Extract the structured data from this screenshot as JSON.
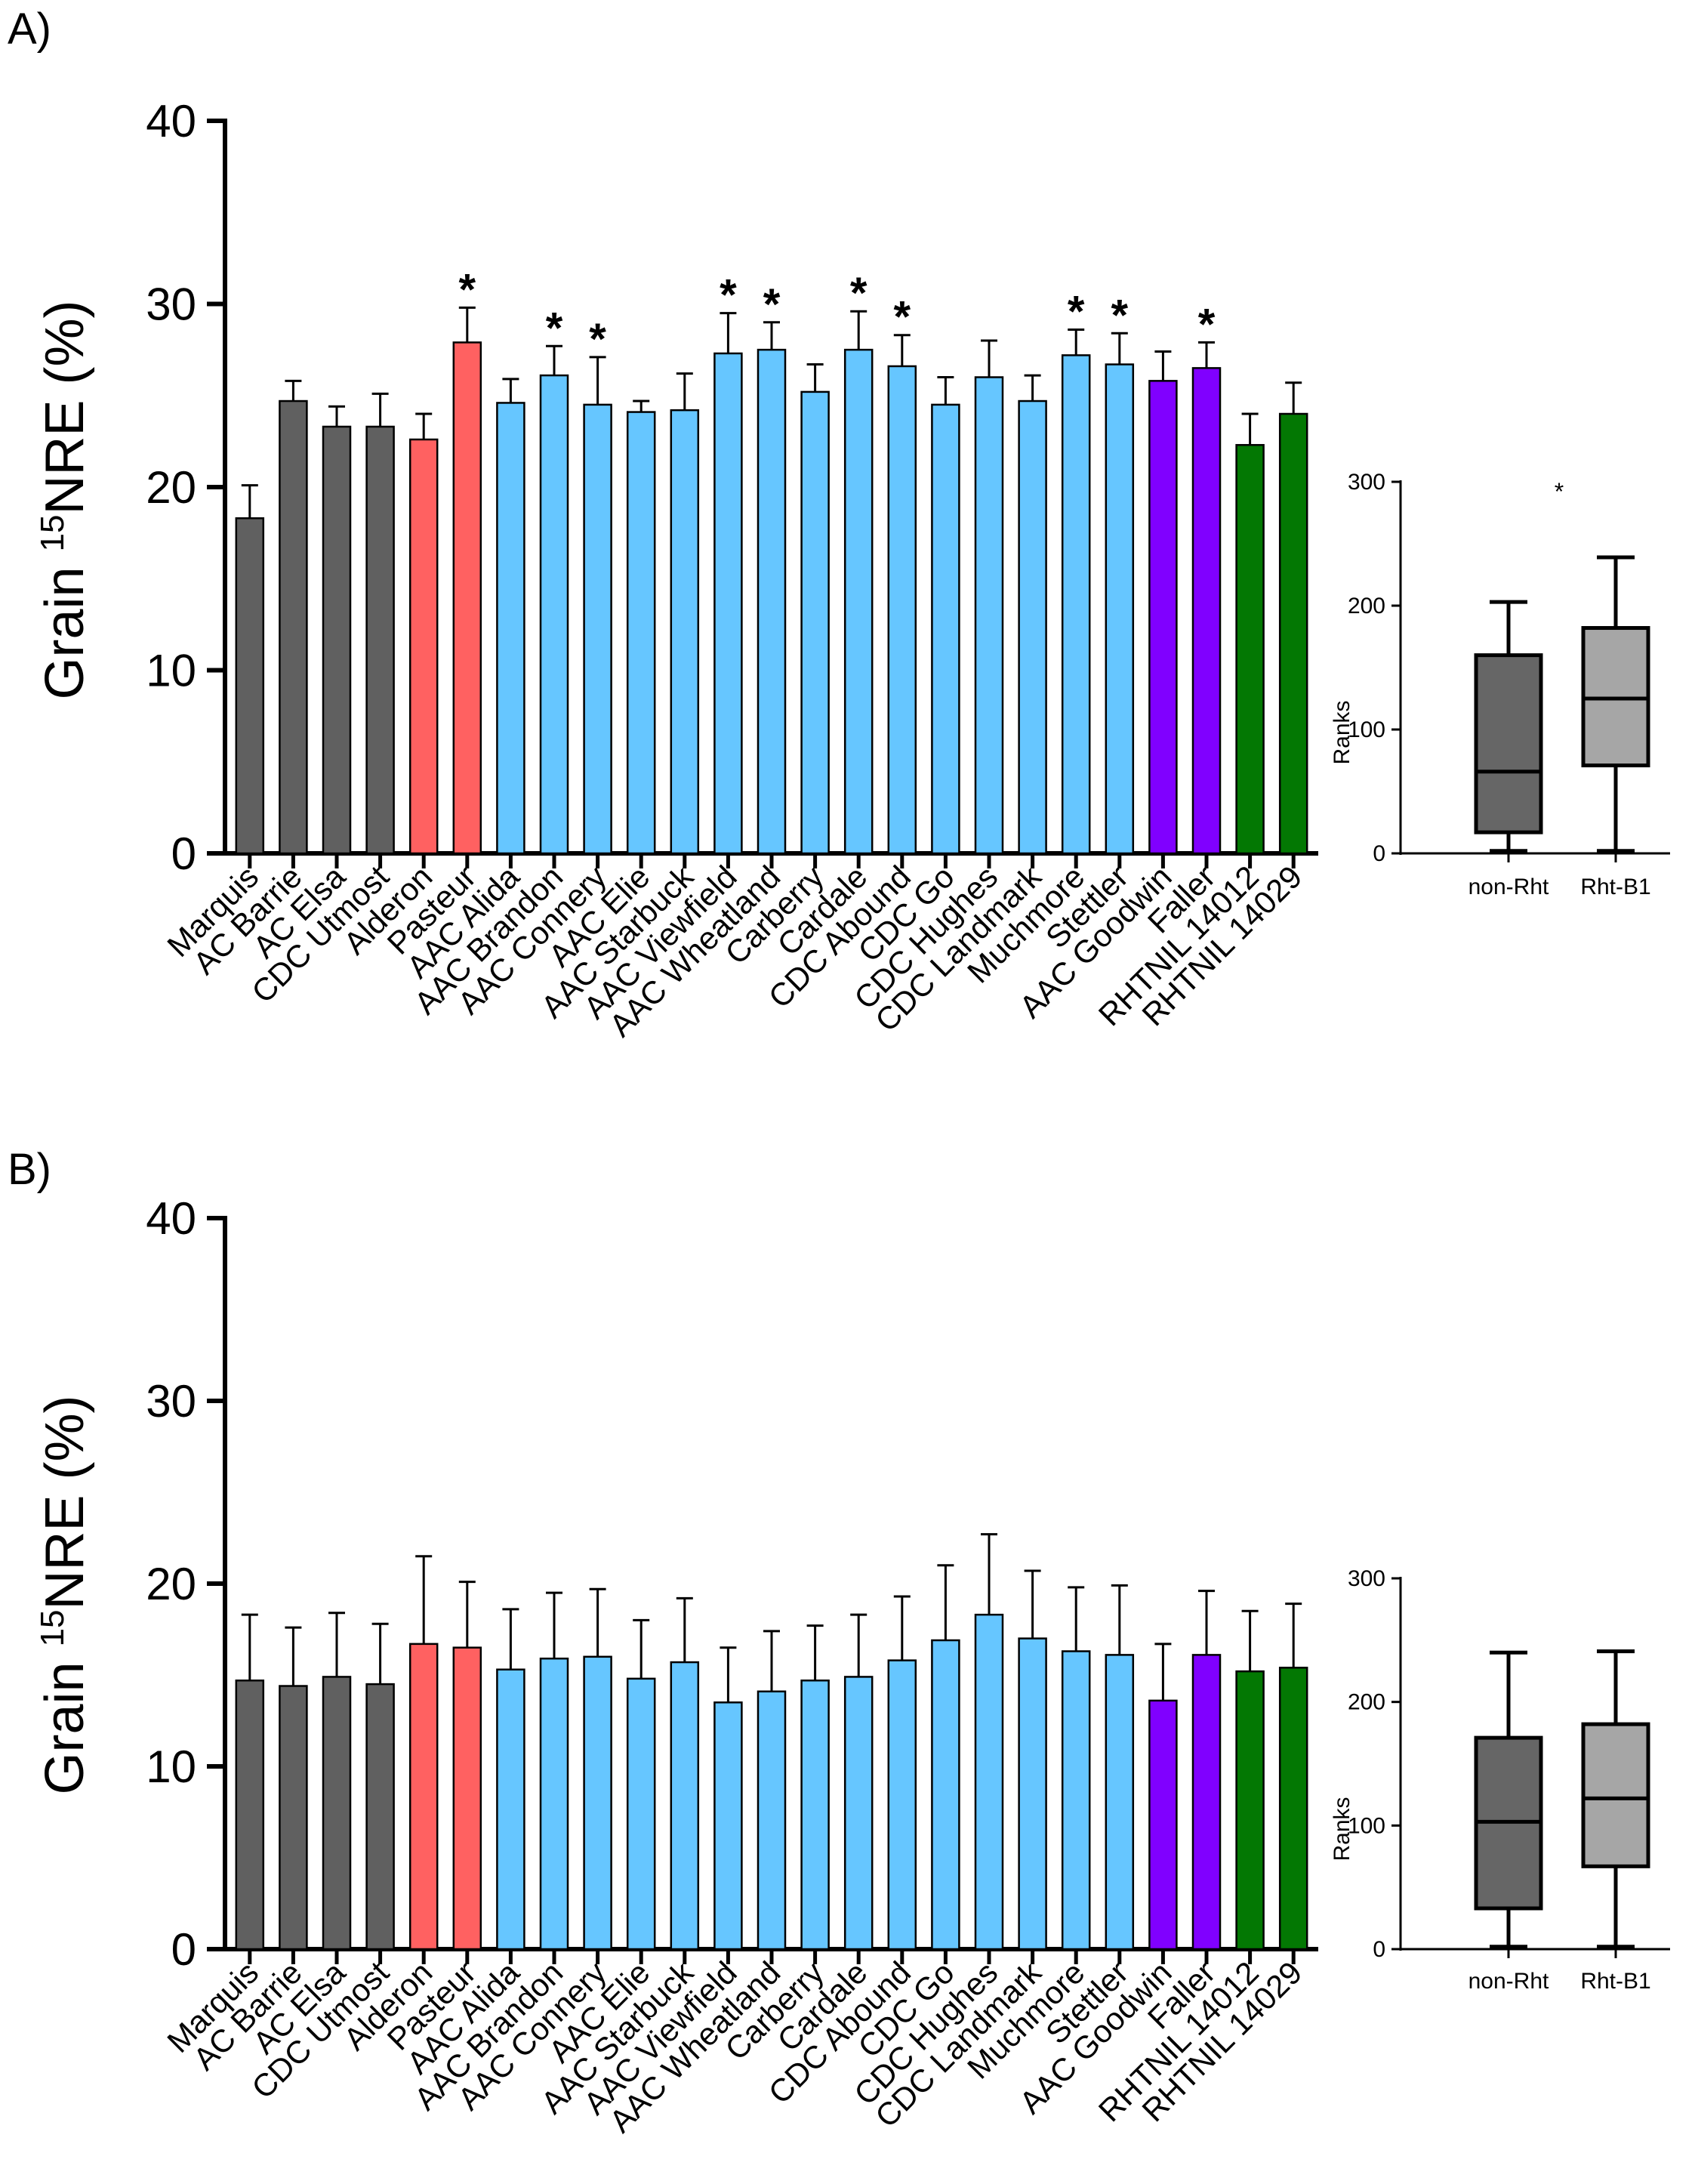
{
  "colors": {
    "gray": "#606060",
    "red": "#ff6161",
    "blue": "#66c6ff",
    "purple": "#8000ff",
    "green": "#037803",
    "box_dark": "#666666",
    "box_light": "#a6a6a6",
    "axis": "#000000"
  },
  "chart_data": [
    {
      "panel": "A)",
      "type": "bar",
      "ylabel_main": "Grain ",
      "ylabel_sup": "15",
      "ylabel_rest": "NRE (%)",
      "ylim": [
        0,
        40
      ],
      "yticks": [
        "0",
        "10",
        "20",
        "30",
        "40"
      ],
      "categories": [
        "Marquis",
        "AC Barrie",
        "AC Elsa",
        "CDC Utmost",
        "Alderon",
        "Pasteur",
        "AAC Alida",
        "AAC Brandon",
        "AAC Connery",
        "AAC Elie",
        "AAC Starbuck",
        "AAC Viewfield",
        "AAC Wheatland",
        "Carberry",
        "Cardale",
        "CDC Abound",
        "CDC Go",
        "CDC Hughes",
        "CDC Landmark",
        "Muchmore",
        "Stettler",
        "AAC Goodwin",
        "Faller",
        "RHTNIL 14012",
        "RHTNIL 14029"
      ],
      "groups": [
        "gray",
        "gray",
        "gray",
        "gray",
        "red",
        "red",
        "blue",
        "blue",
        "blue",
        "blue",
        "blue",
        "blue",
        "blue",
        "blue",
        "blue",
        "blue",
        "blue",
        "blue",
        "blue",
        "blue",
        "blue",
        "purple",
        "purple",
        "green",
        "green"
      ],
      "values": [
        18.3,
        24.7,
        23.3,
        23.3,
        22.6,
        27.9,
        24.6,
        26.1,
        24.5,
        24.1,
        24.2,
        27.3,
        27.5,
        25.2,
        27.5,
        26.6,
        24.5,
        26.0,
        24.7,
        27.2,
        26.7,
        25.8,
        26.5,
        22.3,
        24.0
      ],
      "errors": [
        1.8,
        1.1,
        1.1,
        1.8,
        1.4,
        1.9,
        1.3,
        1.6,
        2.6,
        0.6,
        2.0,
        2.2,
        1.5,
        1.5,
        2.1,
        1.7,
        1.5,
        2.0,
        1.4,
        1.4,
        1.7,
        1.6,
        1.4,
        1.7,
        1.7
      ],
      "significance": [
        "",
        "",
        "",
        "",
        "",
        "*",
        "",
        "*",
        "*",
        "",
        "",
        "*",
        "*",
        "",
        "*",
        "*",
        "",
        "",
        "",
        "*",
        "*",
        "",
        "*",
        "",
        ""
      ],
      "inset": {
        "type": "box",
        "ylabel": "Ranks",
        "ylim": [
          0,
          300
        ],
        "yticks": [
          "0",
          "100",
          "200",
          "300"
        ],
        "categories": [
          "non-Rht",
          "Rht-B1"
        ],
        "boxes": [
          {
            "min": 2,
            "q1": 17,
            "median": 66,
            "q3": 160,
            "max": 203
          },
          {
            "min": 2,
            "q1": 71,
            "median": 125,
            "q3": 182,
            "max": 239
          }
        ],
        "annotation": "*"
      }
    },
    {
      "panel": "B)",
      "type": "bar",
      "ylabel_main": "Grain ",
      "ylabel_sup": "15",
      "ylabel_rest": "NRE (%)",
      "ylim": [
        0,
        40
      ],
      "yticks": [
        "0",
        "10",
        "20",
        "30",
        "40"
      ],
      "categories": [
        "Marquis",
        "AC Barrie",
        "AC Elsa",
        "CDC Utmost",
        "Alderon",
        "Pasteur",
        "AAC Alida",
        "AAC Brandon",
        "AAC Connery",
        "AAC Elie",
        "AAC Starbuck",
        "AAC Viewfield",
        "AAC Wheatland",
        "Carberry",
        "Cardale",
        "CDC Abound",
        "CDC Go",
        "CDC Hughes",
        "CDC Landmark",
        "Muchmore",
        "Stettler",
        "AAC Goodwin",
        "Faller",
        "RHTNIL 14012",
        "RHTNIL 14029"
      ],
      "groups": [
        "gray",
        "gray",
        "gray",
        "gray",
        "red",
        "red",
        "blue",
        "blue",
        "blue",
        "blue",
        "blue",
        "blue",
        "blue",
        "blue",
        "blue",
        "blue",
        "blue",
        "blue",
        "blue",
        "blue",
        "blue",
        "purple",
        "purple",
        "green",
        "green"
      ],
      "values": [
        14.7,
        14.4,
        14.9,
        14.5,
        16.7,
        16.5,
        15.3,
        15.9,
        16.0,
        14.8,
        15.7,
        13.5,
        14.1,
        14.7,
        14.9,
        15.8,
        16.9,
        18.3,
        17.0,
        16.3,
        16.1,
        13.6,
        16.1,
        15.2,
        15.4
      ],
      "errors": [
        3.6,
        3.2,
        3.5,
        3.3,
        4.8,
        3.6,
        3.3,
        3.6,
        3.7,
        3.2,
        3.5,
        3.0,
        3.3,
        3.0,
        3.4,
        3.5,
        4.1,
        4.4,
        3.7,
        3.5,
        3.8,
        3.1,
        3.5,
        3.3,
        3.5
      ],
      "significance": [
        "",
        "",
        "",
        "",
        "",
        "",
        "",
        "",
        "",
        "",
        "",
        "",
        "",
        "",
        "",
        "",
        "",
        "",
        "",
        "",
        "",
        "",
        "",
        "",
        ""
      ],
      "inset": {
        "type": "box",
        "ylabel": "Ranks",
        "ylim": [
          0,
          300
        ],
        "yticks": [
          "0",
          "100",
          "200",
          "300"
        ],
        "categories": [
          "non-Rht",
          "Rht-B1"
        ],
        "boxes": [
          {
            "min": 2,
            "q1": 33,
            "median": 103,
            "q3": 171,
            "max": 240
          },
          {
            "min": 2,
            "q1": 67,
            "median": 122,
            "q3": 182,
            "max": 241
          }
        ],
        "annotation": ""
      }
    }
  ]
}
